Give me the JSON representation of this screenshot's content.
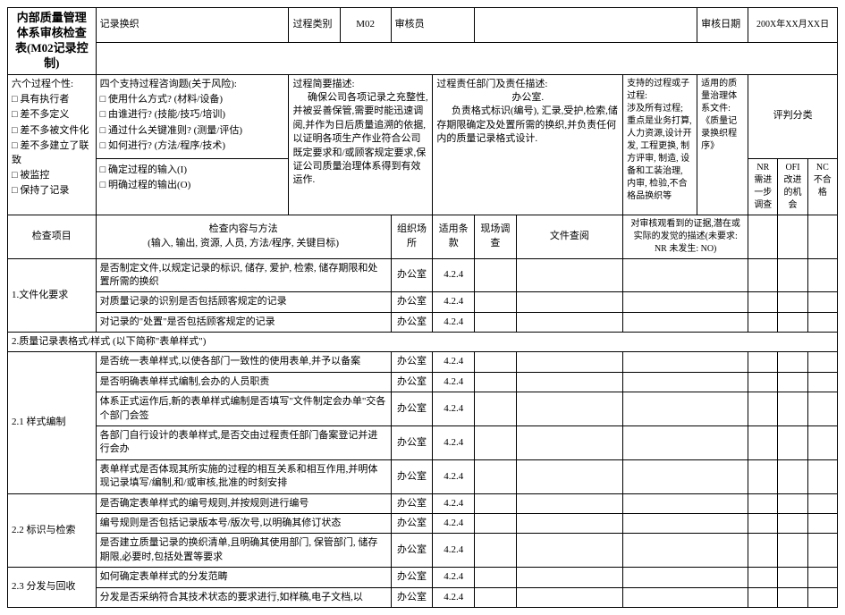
{
  "colors": {
    "border": "#000000",
    "background": "#ffffff",
    "text": "#000000"
  },
  "header": {
    "title": "内部质量管理体系审核检查表(M02记录控制)",
    "labels": {
      "record_dept": "记录换织",
      "process_type": "过程类别",
      "process_type_val": "M02",
      "auditor": "审核员",
      "audit_date": "审核日期",
      "audit_date_val": "200X年XX月XX日"
    }
  },
  "topboxes": {
    "six_personality": {
      "title": "六个过程个性:",
      "items": [
        "具有执行者",
        "差不多定义",
        "差不多被文件化",
        "差不多建立了联致",
        "被监控",
        "保持了记录"
      ]
    },
    "four_support": {
      "title": "四个支持过程咨询题(关于风险):",
      "items": [
        "使用什么方式? (材料/设备)",
        "由谁进行? (技能/技巧/培训)",
        "通过什么关键准则? (测量/评估)",
        "如何进行? (方法/程序/技术)"
      ],
      "extras": [
        "确定过程的输入(I)",
        "明确过程的输出(O)"
      ]
    },
    "summary": {
      "label": "过程简要描述:",
      "text": "确保公司各项记录之充整性,并被妥善保管,需要时能迅速调阅,并作为日后质量追溯的依据,以证明各项生产作业符合公司既定要求和/或顾客规定要求,保证公司质量治理体系得到有效运作."
    },
    "dept": {
      "label": "过程责任部门及责任描述:",
      "sub": "办公室.",
      "text": "负责格式标识(编号), 汇录,受护,检索,储存期限确定及处置所需的换织,并负责任何内的质量记录格式设计."
    },
    "support_proc": {
      "label": "支持的过程或子过程:",
      "text": "涉及所有过程; 重点是业务打算, 人力资源,设计开发, 工程更换, 制方评审, 制造, 设备和工装治理, 内审, 检验,不合格品换织等"
    },
    "ref_doc": {
      "label": "适用的质量治理体系文件:",
      "text": "《质量记录换织程序》"
    },
    "score": {
      "label": "评判分类",
      "nr": "NR 需进一步调查",
      "ofi": "OFI 改进的机会",
      "nc": "NC 不合格"
    }
  },
  "columns": {
    "item": "检查项目",
    "method": "检查内容与方法\n(输入, 输出, 资源, 人员, 方法/程序, 关键目标)",
    "org": "组织场所",
    "clause": "适用条款",
    "survey": "现场调查",
    "doc": "文件查阅",
    "evidence": "对审核观看到的证据,潜在或实际的发觉的描述(未要求: NR   未发生: NO)"
  },
  "sections": [
    {
      "num": "1.文件化要求",
      "rows": [
        {
          "q": "是否制定文件,以规定记录的标识, 储存, 爱护, 检索, 储存期限和处置所需的换织",
          "org": "办公室",
          "cl": "4.2.4"
        },
        {
          "q": "对质量记录的识别是否包括顾客规定的记录",
          "org": "办公室",
          "cl": "4.2.4"
        },
        {
          "q": "对记录的\"处置\"是否包括顾客规定的记录",
          "org": "办公室",
          "cl": "4.2.4"
        }
      ]
    },
    {
      "num": "2.质量记录表格式/样式 (以下简称\"表单样式\")"
    },
    {
      "num": "2.1 样式编制",
      "rows": [
        {
          "q": "是否统一表单样式,以使各部门一致性的使用表单,并予以备案",
          "org": "办公室",
          "cl": "4.2.4"
        },
        {
          "q": "是否明确表单样式编制,会办的人员职责",
          "org": "办公室",
          "cl": "4.2.4"
        },
        {
          "q": "体系正式运作后,新的表单样式编制是否填写\"文件制定会办单\"交各个部门会签",
          "org": "办公室",
          "cl": "4.2.4"
        },
        {
          "q": "各部门自行设计的表单样式,是否交由过程责任部门备案登记并进行会办",
          "org": "办公室",
          "cl": "4.2.4"
        },
        {
          "q": "表单样式是否体现其所实施的过程的相互关系和相互作用,并明体现记录填写/编制,和/或审核,批准的时刻安排",
          "org": "办公室",
          "cl": "4.2.4"
        }
      ]
    },
    {
      "num": "2.2 标识与检索",
      "rows": [
        {
          "q": "是否确定表单样式的编号规则,并按规则进行编号",
          "org": "办公室",
          "cl": "4.2.4"
        },
        {
          "q": "编号规则是否包括记录版本号/版次号,以明确其修订状态",
          "org": "办公室",
          "cl": "4.2.4"
        },
        {
          "q": "是否建立质量记录的换织清单,且明确其使用部门, 保管部门, 储存期限,必要时,包括处置等要求",
          "org": "办公室",
          "cl": "4.2.4"
        }
      ]
    },
    {
      "num": "2.3 分发与回收",
      "rows": [
        {
          "q": "如何确定表单样式的分发范畴",
          "org": "办公室",
          "cl": "4.2.4"
        },
        {
          "q": "分发是否采纳符合其技术状态的要求进行,如样稿,电子文档,以",
          "org": "办公室",
          "cl": "4.2.4"
        }
      ]
    }
  ],
  "checkbox_glyph": "□"
}
